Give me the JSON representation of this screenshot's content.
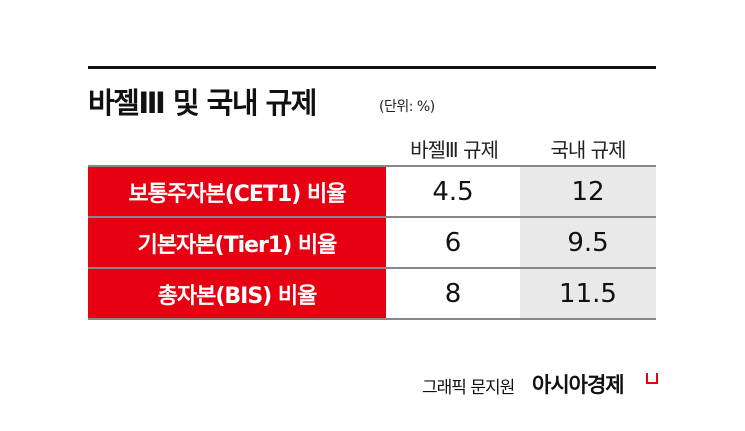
{
  "title": "바젤Ⅲ 및 국내 규제",
  "unit": "(단위: %)",
  "columns": [
    "바젤Ⅲ 규제",
    "국내 규제"
  ],
  "rows": [
    {
      "label": "보통주자본(CET1) 비율",
      "basel": "4.5",
      "domestic": "12"
    },
    {
      "label": "기본자본(Tier1) 비율",
      "basel": "6",
      "domestic": "9.5"
    },
    {
      "label": "총자본(BIS) 비율",
      "basel": "8",
      "domestic": "11.5"
    }
  ],
  "credit": "그래픽 문지원",
  "brand": "아시아경제",
  "colors": {
    "accent": "#e60012",
    "shade": "#e9e9e9"
  }
}
